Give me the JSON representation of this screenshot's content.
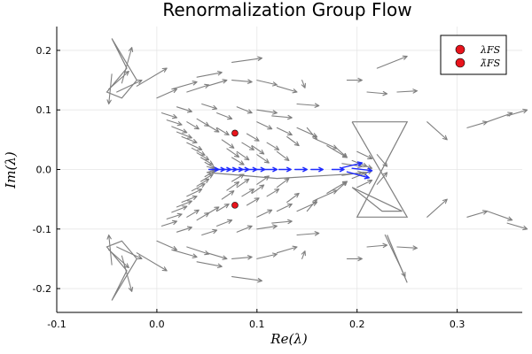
{
  "chart_data": {
    "type": "scatter",
    "title": "Renormalization Group Flow",
    "xlabel": "Re(λ)",
    "ylabel": "Im(λ)",
    "xlim": [
      -0.1,
      0.365
    ],
    "ylim": [
      -0.24,
      0.24
    ],
    "xticks": [
      -0.1,
      0.0,
      0.1,
      0.2,
      0.3
    ],
    "xtick_labels": [
      "-0.1",
      "0.0",
      "0.1",
      "0.2",
      "0.3"
    ],
    "yticks": [
      -0.2,
      -0.1,
      0.0,
      0.1,
      0.2
    ],
    "ytick_labels": [
      "-0.2",
      "-0.1",
      "0.0",
      "0.1",
      "0.2"
    ],
    "grid": true,
    "legend_position": "top-right",
    "colors": {
      "flow": "#808080",
      "real_axis_flow": "#1f2bff",
      "fixed_point": "#e8141c"
    },
    "series": [
      {
        "name": "λFS",
        "type": "scatter",
        "points": [
          [
            0.078,
            0.061
          ]
        ]
      },
      {
        "name": "λ̄FS",
        "type": "scatter",
        "points": [
          [
            0.078,
            -0.06
          ]
        ]
      }
    ],
    "real_axis_flow": [
      [
        0.052,
        0.0,
        0.01,
        0.0
      ],
      [
        0.058,
        0.0,
        0.01,
        0.0
      ],
      [
        0.064,
        0.0,
        0.01,
        0.0
      ],
      [
        0.07,
        0.0,
        0.01,
        0.0
      ],
      [
        0.076,
        0.0,
        0.01,
        0.0
      ],
      [
        0.082,
        0.0,
        0.01,
        0.0
      ],
      [
        0.09,
        0.0,
        0.01,
        0.0
      ],
      [
        0.098,
        0.0,
        0.01,
        0.0
      ],
      [
        0.108,
        0.0,
        0.012,
        0.0
      ],
      [
        0.122,
        0.0,
        0.012,
        0.0
      ],
      [
        0.138,
        0.0,
        0.012,
        0.0
      ],
      [
        0.154,
        0.0,
        0.012,
        0.0
      ],
      [
        0.175,
        0.0,
        0.012,
        0.0
      ],
      [
        0.185,
        0.003,
        0.02,
        0.008
      ],
      [
        0.19,
        -0.004,
        0.022,
        -0.01
      ],
      [
        0.195,
        0.002,
        0.02,
        -0.004
      ]
    ],
    "flow_vectors": [
      [
        -0.045,
        0.16,
        -0.003,
        -0.05
      ],
      [
        -0.04,
        0.13,
        0.025,
        0.02
      ],
      [
        -0.035,
        0.145,
        0.01,
        0.06
      ],
      [
        -0.048,
        0.135,
        0.02,
        0.03
      ],
      [
        -0.02,
        0.14,
        0.03,
        0.03
      ],
      [
        0.0,
        0.12,
        0.02,
        0.015
      ],
      [
        0.015,
        0.135,
        0.025,
        0.012
      ],
      [
        0.03,
        0.13,
        0.022,
        0.012
      ],
      [
        0.05,
        0.14,
        0.02,
        0.01
      ],
      [
        0.075,
        0.15,
        0.02,
        -0.003
      ],
      [
        0.075,
        0.18,
        0.03,
        0.007
      ],
      [
        0.04,
        0.155,
        0.025,
        0.008
      ],
      [
        0.1,
        0.15,
        0.02,
        -0.008
      ],
      [
        0.12,
        0.14,
        0.02,
        -0.01
      ],
      [
        0.145,
        0.15,
        0.003,
        -0.013
      ],
      [
        0.115,
        0.09,
        0.02,
        -0.003
      ],
      [
        0.1,
        0.1,
        0.02,
        -0.005
      ],
      [
        0.14,
        0.11,
        0.022,
        -0.003
      ],
      [
        0.14,
        0.07,
        0.02,
        -0.015
      ],
      [
        0.15,
        0.07,
        0.01,
        -0.02
      ],
      [
        0.16,
        0.05,
        0.02,
        -0.015
      ],
      [
        0.17,
        0.04,
        0.02,
        -0.02
      ],
      [
        0.18,
        0.035,
        0.01,
        -0.015
      ],
      [
        0.2,
        0.03,
        0.015,
        -0.012
      ],
      [
        0.22,
        0.025,
        0.01,
        -0.02
      ],
      [
        0.24,
        0.13,
        0.02,
        0.002
      ],
      [
        0.21,
        0.13,
        0.02,
        -0.003
      ],
      [
        0.22,
        0.17,
        0.03,
        0.02
      ],
      [
        0.19,
        0.15,
        0.015,
        0.0
      ],
      [
        0.27,
        0.08,
        0.02,
        -0.03
      ],
      [
        0.31,
        0.07,
        0.02,
        0.01
      ],
      [
        0.33,
        0.08,
        0.025,
        0.015
      ],
      [
        0.35,
        0.09,
        0.02,
        0.01
      ],
      [
        0.005,
        0.095,
        0.015,
        -0.008
      ],
      [
        0.01,
        0.083,
        0.015,
        -0.008
      ],
      [
        0.015,
        0.072,
        0.015,
        -0.01
      ],
      [
        0.02,
        0.063,
        0.015,
        -0.01
      ],
      [
        0.025,
        0.055,
        0.015,
        -0.01
      ],
      [
        0.03,
        0.045,
        0.015,
        -0.012
      ],
      [
        0.035,
        0.036,
        0.013,
        -0.012
      ],
      [
        0.04,
        0.028,
        0.012,
        -0.012
      ],
      [
        0.044,
        0.02,
        0.012,
        -0.012
      ],
      [
        0.048,
        0.012,
        0.01,
        -0.01
      ],
      [
        0.05,
        0.005,
        0.01,
        -0.005
      ],
      [
        0.03,
        0.08,
        0.012,
        -0.012
      ],
      [
        0.04,
        0.085,
        0.012,
        -0.012
      ],
      [
        0.05,
        0.075,
        0.012,
        -0.012
      ],
      [
        0.06,
        0.07,
        0.012,
        -0.012
      ],
      [
        0.065,
        0.05,
        0.012,
        -0.014
      ],
      [
        0.07,
        0.035,
        0.012,
        -0.014
      ],
      [
        0.075,
        0.02,
        0.012,
        -0.012
      ],
      [
        0.08,
        0.03,
        0.012,
        -0.014
      ],
      [
        0.085,
        0.045,
        0.012,
        -0.012
      ],
      [
        0.09,
        0.06,
        0.012,
        -0.012
      ],
      [
        0.095,
        0.04,
        0.012,
        -0.014
      ],
      [
        0.1,
        0.025,
        0.012,
        -0.014
      ],
      [
        0.11,
        0.045,
        0.012,
        -0.012
      ],
      [
        0.12,
        0.03,
        0.012,
        -0.015
      ],
      [
        0.13,
        0.055,
        0.012,
        -0.015
      ],
      [
        0.06,
        0.095,
        0.015,
        -0.01
      ],
      [
        0.08,
        0.105,
        0.015,
        -0.01
      ],
      [
        0.1,
        0.08,
        0.015,
        -0.012
      ],
      [
        0.12,
        0.07,
        0.015,
        -0.012
      ],
      [
        0.02,
        0.105,
        0.015,
        -0.008
      ],
      [
        0.045,
        0.11,
        0.015,
        -0.008
      ],
      [
        0.185,
        0.01,
        0.02,
        -0.005
      ],
      [
        0.195,
        0.015,
        0.015,
        -0.01
      ],
      [
        0.205,
        0.008,
        0.01,
        -0.006
      ],
      [
        -0.045,
        -0.16,
        -0.003,
        0.05
      ],
      [
        -0.04,
        -0.13,
        0.025,
        -0.02
      ],
      [
        -0.035,
        -0.145,
        0.01,
        -0.06
      ],
      [
        -0.048,
        -0.135,
        0.02,
        -0.03
      ],
      [
        -0.02,
        -0.14,
        0.03,
        -0.03
      ],
      [
        0.0,
        -0.12,
        0.02,
        -0.015
      ],
      [
        0.015,
        -0.135,
        0.025,
        -0.012
      ],
      [
        0.03,
        -0.13,
        0.022,
        -0.012
      ],
      [
        0.05,
        -0.14,
        0.02,
        -0.01
      ],
      [
        0.075,
        -0.15,
        0.02,
        0.003
      ],
      [
        0.075,
        -0.18,
        0.03,
        -0.007
      ],
      [
        0.04,
        -0.155,
        0.025,
        -0.008
      ],
      [
        0.1,
        -0.15,
        0.02,
        0.008
      ],
      [
        0.12,
        -0.14,
        0.02,
        0.01
      ],
      [
        0.145,
        -0.15,
        0.003,
        0.013
      ],
      [
        0.115,
        -0.09,
        0.02,
        0.003
      ],
      [
        0.1,
        -0.1,
        0.02,
        0.005
      ],
      [
        0.14,
        -0.11,
        0.022,
        0.003
      ],
      [
        0.14,
        -0.07,
        0.02,
        0.015
      ],
      [
        0.15,
        -0.07,
        0.01,
        0.02
      ],
      [
        0.16,
        -0.05,
        0.02,
        0.015
      ],
      [
        0.17,
        -0.04,
        0.02,
        0.02
      ],
      [
        0.18,
        -0.035,
        0.01,
        0.015
      ],
      [
        0.2,
        -0.03,
        0.015,
        0.012
      ],
      [
        0.22,
        -0.025,
        0.01,
        0.02
      ],
      [
        0.24,
        -0.13,
        0.02,
        -0.002
      ],
      [
        0.21,
        -0.13,
        0.02,
        0.003
      ],
      [
        0.228,
        -0.11,
        0.02,
        -0.07
      ],
      [
        0.19,
        -0.15,
        0.015,
        0.0
      ],
      [
        0.27,
        -0.08,
        0.02,
        0.03
      ],
      [
        0.31,
        -0.08,
        0.02,
        0.01
      ],
      [
        0.33,
        -0.07,
        0.025,
        -0.015
      ],
      [
        0.35,
        -0.09,
        0.02,
        -0.01
      ],
      [
        0.005,
        -0.095,
        0.015,
        0.008
      ],
      [
        0.01,
        -0.083,
        0.015,
        0.008
      ],
      [
        0.015,
        -0.072,
        0.015,
        0.01
      ],
      [
        0.02,
        -0.063,
        0.015,
        0.01
      ],
      [
        0.025,
        -0.055,
        0.015,
        0.01
      ],
      [
        0.03,
        -0.045,
        0.015,
        0.012
      ],
      [
        0.035,
        -0.036,
        0.013,
        0.012
      ],
      [
        0.04,
        -0.028,
        0.012,
        0.012
      ],
      [
        0.044,
        -0.02,
        0.012,
        0.012
      ],
      [
        0.048,
        -0.012,
        0.01,
        0.01
      ],
      [
        0.05,
        -0.005,
        0.01,
        0.005
      ],
      [
        0.03,
        -0.08,
        0.012,
        0.012
      ],
      [
        0.04,
        -0.085,
        0.012,
        0.012
      ],
      [
        0.05,
        -0.075,
        0.012,
        0.012
      ],
      [
        0.06,
        -0.07,
        0.012,
        0.012
      ],
      [
        0.065,
        -0.05,
        0.012,
        0.014
      ],
      [
        0.07,
        -0.035,
        0.012,
        0.014
      ],
      [
        0.075,
        -0.02,
        0.012,
        0.012
      ],
      [
        0.08,
        -0.03,
        0.012,
        0.014
      ],
      [
        0.085,
        -0.045,
        0.012,
        0.012
      ],
      [
        0.09,
        -0.06,
        0.012,
        0.012
      ],
      [
        0.095,
        -0.04,
        0.012,
        0.014
      ],
      [
        0.1,
        -0.025,
        0.012,
        0.014
      ],
      [
        0.11,
        -0.045,
        0.012,
        0.012
      ],
      [
        0.12,
        -0.03,
        0.012,
        0.015
      ],
      [
        0.13,
        -0.055,
        0.012,
        0.015
      ],
      [
        0.06,
        -0.095,
        0.015,
        0.01
      ],
      [
        0.08,
        -0.105,
        0.015,
        0.01
      ],
      [
        0.1,
        -0.08,
        0.015,
        0.012
      ],
      [
        0.12,
        -0.07,
        0.015,
        0.012
      ],
      [
        0.02,
        -0.105,
        0.015,
        0.008
      ],
      [
        0.045,
        -0.11,
        0.015,
        0.008
      ],
      [
        0.185,
        -0.01,
        0.02,
        0.005
      ],
      [
        0.195,
        -0.015,
        0.015,
        0.01
      ],
      [
        0.205,
        -0.008,
        0.01,
        0.006
      ]
    ],
    "flow_polylines": [
      [
        [
          -0.045,
          0.22
        ],
        [
          -0.03,
          0.17
        ],
        [
          -0.05,
          0.13
        ],
        [
          -0.035,
          0.12
        ],
        [
          -0.02,
          0.15
        ],
        [
          -0.045,
          0.22
        ]
      ],
      [
        [
          0.195,
          0.08
        ],
        [
          0.25,
          0.08
        ],
        [
          0.2,
          -0.08
        ],
        [
          0.25,
          -0.08
        ],
        [
          0.195,
          0.08
        ]
      ],
      [
        [
          0.195,
          -0.03
        ],
        [
          0.225,
          -0.07
        ],
        [
          0.245,
          -0.07
        ],
        [
          0.195,
          -0.03
        ]
      ],
      [
        [
          0.05,
          -0.005
        ],
        [
          0.12,
          -0.015
        ],
        [
          0.19,
          -0.008
        ],
        [
          0.21,
          -0.005
        ]
      ],
      [
        [
          -0.045,
          -0.22
        ],
        [
          -0.03,
          -0.17
        ],
        [
          -0.05,
          -0.13
        ],
        [
          -0.035,
          -0.12
        ],
        [
          -0.02,
          -0.15
        ],
        [
          -0.045,
          -0.22
        ]
      ],
      [
        [
          0.23,
          -0.11
        ],
        [
          0.25,
          -0.19
        ]
      ]
    ]
  }
}
